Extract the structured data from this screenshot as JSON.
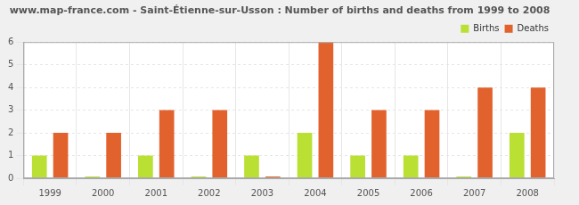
{
  "chart_data": {
    "type": "bar",
    "title": "www.map-france.com - Saint-Étienne-sur-Usson : Number of births and deaths from 1999 to 2008",
    "categories": [
      "1999",
      "2000",
      "2001",
      "2002",
      "2003",
      "2004",
      "2005",
      "2006",
      "2007",
      "2008"
    ],
    "series": [
      {
        "name": "Births",
        "color": "#b9e032",
        "values": [
          1,
          0,
          1,
          0,
          1,
          2,
          1,
          1,
          0,
          2
        ]
      },
      {
        "name": "Deaths",
        "color": "#e2622e",
        "values": [
          2,
          2,
          3,
          3,
          0,
          6,
          3,
          3,
          4,
          4
        ]
      }
    ],
    "ylim": [
      0,
      6
    ],
    "yticks": [
      0,
      1,
      2,
      3,
      4,
      5,
      6
    ],
    "grid": true,
    "legend": "upper right"
  }
}
